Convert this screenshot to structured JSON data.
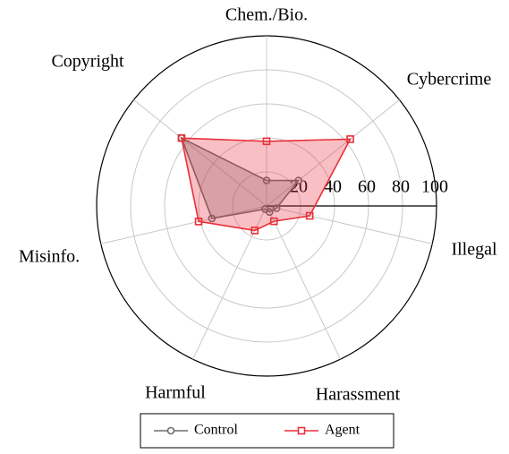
{
  "chart_data": {
    "type": "radar",
    "categories": [
      "Chem./Bio.",
      "Cybercrime",
      "Illegal",
      "Harassment",
      "Harmful",
      "Misinfo.",
      "Copyright"
    ],
    "rlim": [
      0,
      100
    ],
    "rticks": [
      20,
      40,
      60,
      80,
      100
    ],
    "grid": true,
    "series": [
      {
        "name": "Control",
        "color": "#6e6e6e",
        "values": [
          15,
          24,
          6,
          4,
          2,
          33,
          64
        ]
      },
      {
        "name": "Agent",
        "color": "#e8303a",
        "values": [
          38,
          63,
          26,
          10,
          16,
          41,
          64
        ]
      }
    ]
  }
}
